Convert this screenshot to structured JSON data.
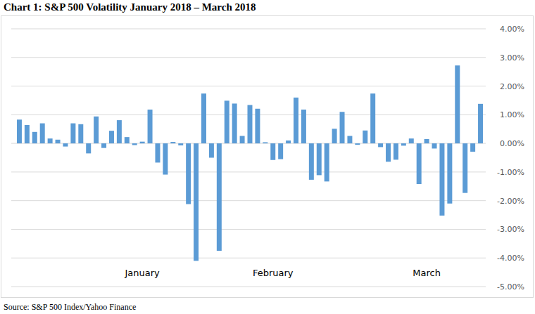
{
  "chart_data": {
    "type": "bar",
    "title": "Chart 1:  S&P 500 Volatility January 2018 – March 2018",
    "source": "Source:  S&P 500 Index/Yahoo Finance",
    "categories": [
      null,
      null,
      null,
      null,
      null,
      null,
      null,
      null,
      null,
      null,
      null,
      null,
      null,
      null,
      null,
      null,
      "January",
      null,
      null,
      null,
      null,
      null,
      null,
      null,
      null,
      null,
      null,
      null,
      null,
      null,
      null,
      null,
      null,
      "February",
      null,
      null,
      null,
      null,
      null,
      null,
      null,
      null,
      null,
      null,
      null,
      null,
      null,
      null,
      null,
      null,
      null,
      null,
      null,
      "March",
      null,
      null,
      null,
      null,
      null,
      null,
      null
    ],
    "values": [
      0.83,
      0.64,
      0.4,
      0.7,
      0.17,
      0.13,
      -0.11,
      0.7,
      0.67,
      -0.35,
      0.94,
      -0.16,
      0.44,
      0.81,
      0.22,
      -0.06,
      0.06,
      1.18,
      -0.67,
      -1.09,
      0.05,
      -0.07,
      -2.12,
      -4.1,
      1.74,
      -0.5,
      -3.75,
      1.49,
      1.39,
      0.26,
      1.34,
      1.21,
      0.04,
      -0.58,
      -0.55,
      0.1,
      1.6,
      1.18,
      -1.27,
      -1.11,
      -1.33,
      0.51,
      1.1,
      0.26,
      -0.05,
      0.45,
      1.74,
      -0.13,
      -0.64,
      -0.57,
      -0.08,
      0.17,
      -1.42,
      0.15,
      -0.18,
      -2.52,
      -2.1,
      2.72,
      -1.73,
      -0.29,
      1.38
    ],
    "color": "#5b9bd5",
    "ylim": [
      -5,
      4
    ],
    "yticks": [
      {
        "value": 4,
        "label": "4.00%"
      },
      {
        "value": 3,
        "label": "3.00%"
      },
      {
        "value": 2,
        "label": "2.00%"
      },
      {
        "value": 1,
        "label": "1.00%"
      },
      {
        "value": 0,
        "label": "0.00%"
      },
      {
        "value": -1,
        "label": "-1.00%"
      },
      {
        "value": -2,
        "label": "-2.00%"
      },
      {
        "value": -3,
        "label": "-3.00%"
      },
      {
        "value": -4,
        "label": "-4.00%"
      },
      {
        "value": -5,
        "label": "-5.00%"
      }
    ],
    "grid": true
  }
}
